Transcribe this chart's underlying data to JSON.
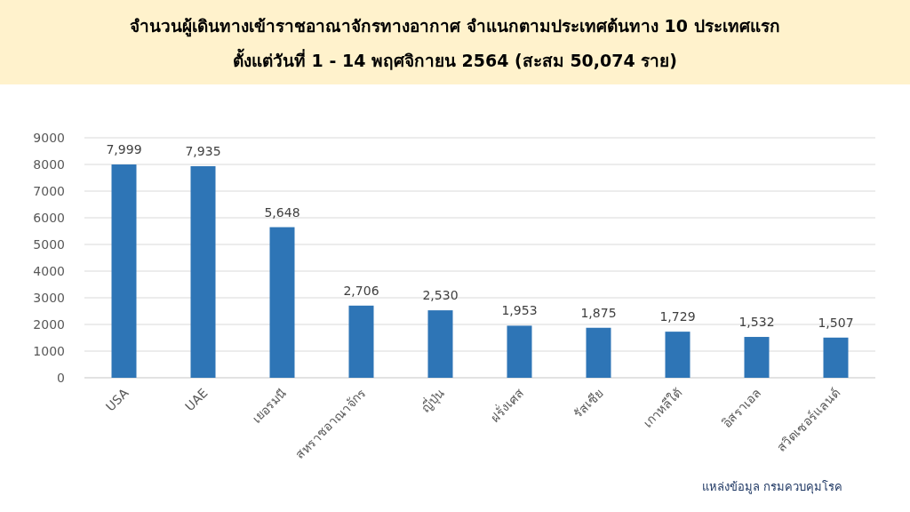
{
  "chart_data": {
    "type": "bar",
    "title": "จำนวนผู้เดินทางเข้าราชอาณาจักรทางอากาศ จำแนกตามประเทศต้นทาง 10 ประเทศแรก",
    "subtitle": "ตั้งแต่วันที่  1 - 14  พฤศจิกายน 2564 (สะสม 50,074 ราย)",
    "categories": [
      "USA",
      "UAE",
      "เยอรมนี",
      "สหราชอาณาจักร",
      "ญี่ปุ่น",
      "ฝรั่งเศส",
      "รัสเซีย",
      "เกาหลีใต้",
      "อิสราเอล",
      "สวิตเซอร์แลนด์"
    ],
    "values": [
      7999,
      7935,
      5648,
      2706,
      2530,
      1953,
      1875,
      1729,
      1532,
      1507
    ],
    "value_labels": [
      "7,999",
      "7,935",
      "5,648",
      "2,706",
      "2,530",
      "1,953",
      "1,875",
      "1,729",
      "1,532",
      "1,507"
    ],
    "color": "#2e75b6",
    "ylim": [
      0,
      9000
    ],
    "yticks": [
      0,
      1000,
      2000,
      3000,
      4000,
      5000,
      6000,
      7000,
      8000,
      9000
    ],
    "grid": "y",
    "annotations": [
      "แหล่งข้อมูล กรมควบคุมโรค"
    ]
  }
}
